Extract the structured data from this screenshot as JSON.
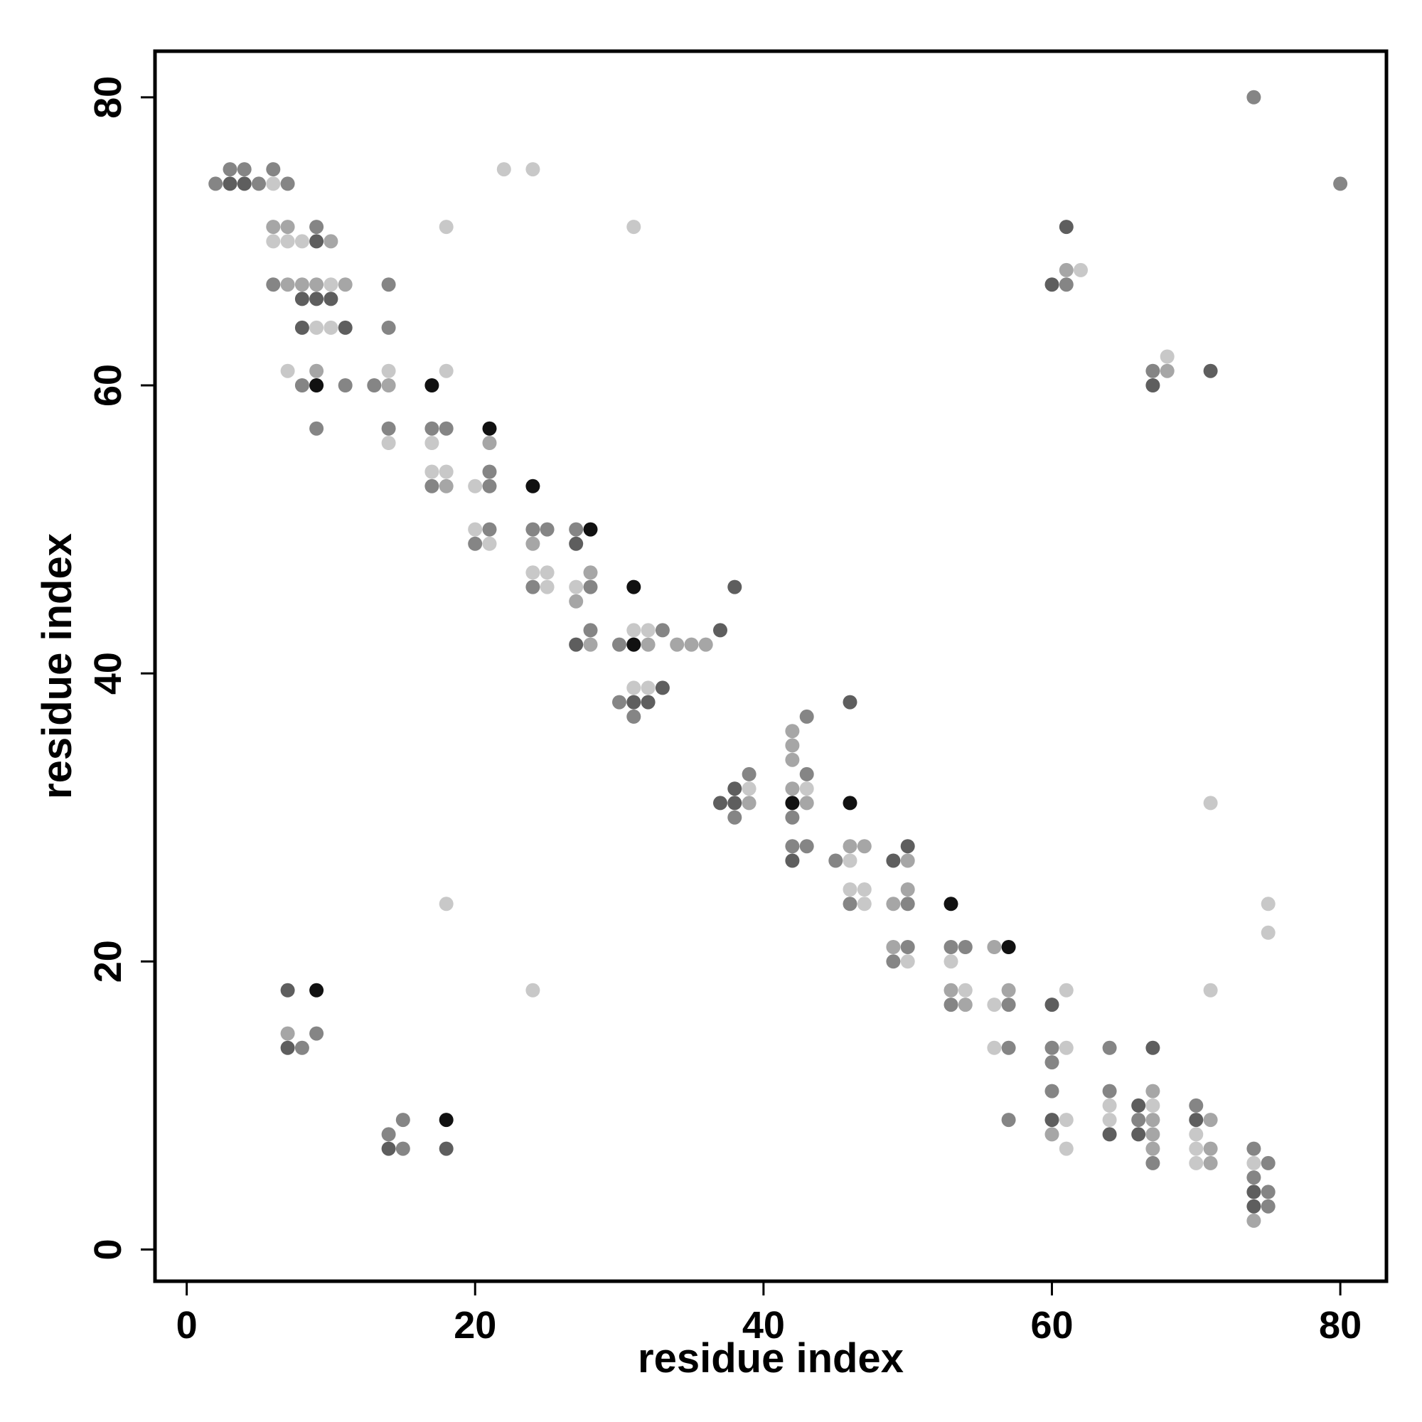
{
  "chart_data": {
    "type": "scatter",
    "title": "",
    "xlabel": "residue index",
    "ylabel": "residue index",
    "xlim": [
      -2.2,
      83.2
    ],
    "ylim": [
      -2.2,
      83.2
    ],
    "xticks": [
      0,
      20,
      40,
      60,
      80
    ],
    "yticks": [
      0,
      20,
      40,
      60,
      80
    ],
    "grid": false,
    "legend": "none",
    "color_scale": "grayscale, shade 1 = lightest gray (#c8c8c8), 5 = black (#111111)",
    "shade_colors": [
      "#c8c8c8",
      "#a6a6a6",
      "#858585",
      "#5e5e5e",
      "#111111"
    ],
    "points": [
      [
        2,
        74,
        3
      ],
      [
        3,
        75,
        3
      ],
      [
        3,
        74,
        4
      ],
      [
        4,
        75,
        3
      ],
      [
        4,
        74,
        4
      ],
      [
        5,
        74,
        3
      ],
      [
        6,
        75,
        3
      ],
      [
        6,
        74,
        1
      ],
      [
        7,
        74,
        3
      ],
      [
        22,
        75,
        1
      ],
      [
        24,
        75,
        1
      ],
      [
        80,
        74,
        3
      ],
      [
        74,
        80,
        3
      ],
      [
        6,
        71,
        2
      ],
      [
        6,
        70,
        1
      ],
      [
        7,
        71,
        2
      ],
      [
        7,
        70,
        1
      ],
      [
        8,
        70,
        1
      ],
      [
        9,
        71,
        3
      ],
      [
        9,
        70,
        4
      ],
      [
        10,
        70,
        2
      ],
      [
        18,
        71,
        1
      ],
      [
        31,
        71,
        1
      ],
      [
        61,
        71,
        4
      ],
      [
        6,
        67,
        3
      ],
      [
        7,
        67,
        2
      ],
      [
        8,
        67,
        2
      ],
      [
        8,
        66,
        4
      ],
      [
        9,
        67,
        2
      ],
      [
        9,
        66,
        4
      ],
      [
        10,
        67,
        1
      ],
      [
        10,
        66,
        4
      ],
      [
        11,
        67,
        2
      ],
      [
        14,
        67,
        3
      ],
      [
        8,
        64,
        4
      ],
      [
        9,
        64,
        1
      ],
      [
        10,
        64,
        1
      ],
      [
        11,
        64,
        4
      ],
      [
        14,
        64,
        3
      ],
      [
        60,
        67,
        4
      ],
      [
        61,
        67,
        3
      ],
      [
        61,
        68,
        2
      ],
      [
        62,
        68,
        1
      ],
      [
        7,
        61,
        1
      ],
      [
        8,
        60,
        3
      ],
      [
        9,
        61,
        2
      ],
      [
        9,
        60,
        5
      ],
      [
        11,
        60,
        3
      ],
      [
        13,
        60,
        3
      ],
      [
        14,
        61,
        1
      ],
      [
        14,
        60,
        2
      ],
      [
        17,
        60,
        5
      ],
      [
        18,
        61,
        1
      ],
      [
        67,
        61,
        3
      ],
      [
        67,
        60,
        4
      ],
      [
        68,
        61,
        2
      ],
      [
        68,
        62,
        1
      ],
      [
        71,
        61,
        4
      ],
      [
        9,
        57,
        3
      ],
      [
        14,
        57,
        3
      ],
      [
        14,
        56,
        1
      ],
      [
        17,
        57,
        3
      ],
      [
        17,
        56,
        1
      ],
      [
        18,
        57,
        3
      ],
      [
        21,
        57,
        5
      ],
      [
        21,
        56,
        2
      ],
      [
        17,
        54,
        1
      ],
      [
        17,
        53,
        3
      ],
      [
        18,
        54,
        1
      ],
      [
        18,
        53,
        2
      ],
      [
        20,
        53,
        1
      ],
      [
        21,
        54,
        3
      ],
      [
        21,
        53,
        3
      ],
      [
        24,
        53,
        5
      ],
      [
        20,
        50,
        1
      ],
      [
        20,
        49,
        3
      ],
      [
        21,
        50,
        3
      ],
      [
        21,
        49,
        1
      ],
      [
        24,
        50,
        3
      ],
      [
        24,
        49,
        2
      ],
      [
        25,
        50,
        3
      ],
      [
        27,
        50,
        3
      ],
      [
        27,
        49,
        4
      ],
      [
        28,
        50,
        5
      ],
      [
        24,
        47,
        1
      ],
      [
        24,
        46,
        3
      ],
      [
        25,
        47,
        1
      ],
      [
        25,
        46,
        1
      ],
      [
        27,
        46,
        1
      ],
      [
        27,
        45,
        2
      ],
      [
        28,
        47,
        2
      ],
      [
        28,
        46,
        3
      ],
      [
        31,
        46,
        5
      ],
      [
        38,
        46,
        4
      ],
      [
        27,
        42,
        4
      ],
      [
        28,
        43,
        3
      ],
      [
        28,
        42,
        2
      ],
      [
        30,
        42,
        3
      ],
      [
        31,
        43,
        1
      ],
      [
        31,
        42,
        5
      ],
      [
        32,
        43,
        1
      ],
      [
        32,
        42,
        2
      ],
      [
        33,
        43,
        3
      ],
      [
        34,
        42,
        2
      ],
      [
        35,
        42,
        2
      ],
      [
        36,
        42,
        2
      ],
      [
        37,
        43,
        4
      ],
      [
        30,
        38,
        3
      ],
      [
        31,
        39,
        1
      ],
      [
        31,
        38,
        4
      ],
      [
        31,
        37,
        3
      ],
      [
        32,
        39,
        1
      ],
      [
        32,
        38,
        4
      ],
      [
        33,
        39,
        4
      ],
      [
        46,
        38,
        4
      ],
      [
        42,
        36,
        2
      ],
      [
        42,
        35,
        2
      ],
      [
        42,
        34,
        2
      ],
      [
        43,
        37,
        3
      ],
      [
        43,
        33,
        3
      ],
      [
        42,
        32,
        2
      ],
      [
        43,
        32,
        1
      ],
      [
        42,
        31,
        5
      ],
      [
        43,
        31,
        2
      ],
      [
        42,
        30,
        3
      ],
      [
        46,
        31,
        5
      ],
      [
        71,
        31,
        1
      ],
      [
        37,
        31,
        4
      ],
      [
        38,
        32,
        4
      ],
      [
        38,
        31,
        4
      ],
      [
        38,
        30,
        3
      ],
      [
        39,
        33,
        3
      ],
      [
        39,
        32,
        1
      ],
      [
        39,
        31,
        2
      ],
      [
        42,
        28,
        3
      ],
      [
        42,
        27,
        4
      ],
      [
        43,
        28,
        3
      ],
      [
        45,
        27,
        3
      ],
      [
        46,
        28,
        2
      ],
      [
        46,
        27,
        1
      ],
      [
        47,
        28,
        2
      ],
      [
        49,
        27,
        4
      ],
      [
        50,
        28,
        4
      ],
      [
        50,
        27,
        2
      ],
      [
        46,
        25,
        1
      ],
      [
        46,
        24,
        3
      ],
      [
        47,
        25,
        1
      ],
      [
        47,
        24,
        1
      ],
      [
        49,
        24,
        2
      ],
      [
        50,
        25,
        2
      ],
      [
        50,
        24,
        3
      ],
      [
        53,
        24,
        5
      ],
      [
        18,
        24,
        1
      ],
      [
        75,
        24,
        1
      ],
      [
        75,
        22,
        1
      ],
      [
        49,
        21,
        2
      ],
      [
        49,
        20,
        3
      ],
      [
        50,
        21,
        3
      ],
      [
        50,
        20,
        1
      ],
      [
        53,
        21,
        3
      ],
      [
        53,
        20,
        1
      ],
      [
        54,
        21,
        3
      ],
      [
        56,
        21,
        2
      ],
      [
        57,
        21,
        5
      ],
      [
        7,
        18,
        4
      ],
      [
        9,
        18,
        5
      ],
      [
        24,
        18,
        1
      ],
      [
        53,
        18,
        2
      ],
      [
        53,
        17,
        3
      ],
      [
        54,
        18,
        1
      ],
      [
        54,
        17,
        2
      ],
      [
        56,
        17,
        1
      ],
      [
        57,
        18,
        2
      ],
      [
        57,
        17,
        3
      ],
      [
        60,
        17,
        4
      ],
      [
        61,
        18,
        1
      ],
      [
        71,
        18,
        1
      ],
      [
        7,
        15,
        2
      ],
      [
        7,
        14,
        4
      ],
      [
        8,
        14,
        3
      ],
      [
        9,
        15,
        3
      ],
      [
        56,
        14,
        1
      ],
      [
        57,
        14,
        3
      ],
      [
        60,
        14,
        3
      ],
      [
        60,
        13,
        3
      ],
      [
        61,
        14,
        1
      ],
      [
        64,
        14,
        3
      ],
      [
        67,
        14,
        4
      ],
      [
        14,
        8,
        3
      ],
      [
        14,
        7,
        4
      ],
      [
        15,
        9,
        3
      ],
      [
        15,
        7,
        3
      ],
      [
        18,
        9,
        5
      ],
      [
        18,
        7,
        4
      ],
      [
        57,
        9,
        3
      ],
      [
        60,
        11,
        3
      ],
      [
        60,
        9,
        4
      ],
      [
        60,
        8,
        2
      ],
      [
        61,
        9,
        1
      ],
      [
        61,
        7,
        1
      ],
      [
        64,
        11,
        3
      ],
      [
        64,
        10,
        1
      ],
      [
        64,
        9,
        1
      ],
      [
        64,
        8,
        4
      ],
      [
        66,
        10,
        4
      ],
      [
        66,
        9,
        3
      ],
      [
        66,
        8,
        4
      ],
      [
        67,
        11,
        2
      ],
      [
        67,
        10,
        1
      ],
      [
        67,
        9,
        2
      ],
      [
        67,
        8,
        2
      ],
      [
        67,
        7,
        2
      ],
      [
        67,
        6,
        3
      ],
      [
        70,
        10,
        3
      ],
      [
        70,
        9,
        4
      ],
      [
        70,
        8,
        1
      ],
      [
        70,
        7,
        1
      ],
      [
        70,
        6,
        1
      ],
      [
        71,
        9,
        2
      ],
      [
        71,
        7,
        2
      ],
      [
        71,
        6,
        2
      ],
      [
        74,
        7,
        3
      ],
      [
        74,
        6,
        1
      ],
      [
        74,
        5,
        3
      ],
      [
        74,
        4,
        4
      ],
      [
        74,
        3,
        4
      ],
      [
        74,
        2,
        2
      ],
      [
        75,
        6,
        3
      ],
      [
        75,
        4,
        3
      ],
      [
        75,
        3,
        3
      ]
    ]
  }
}
